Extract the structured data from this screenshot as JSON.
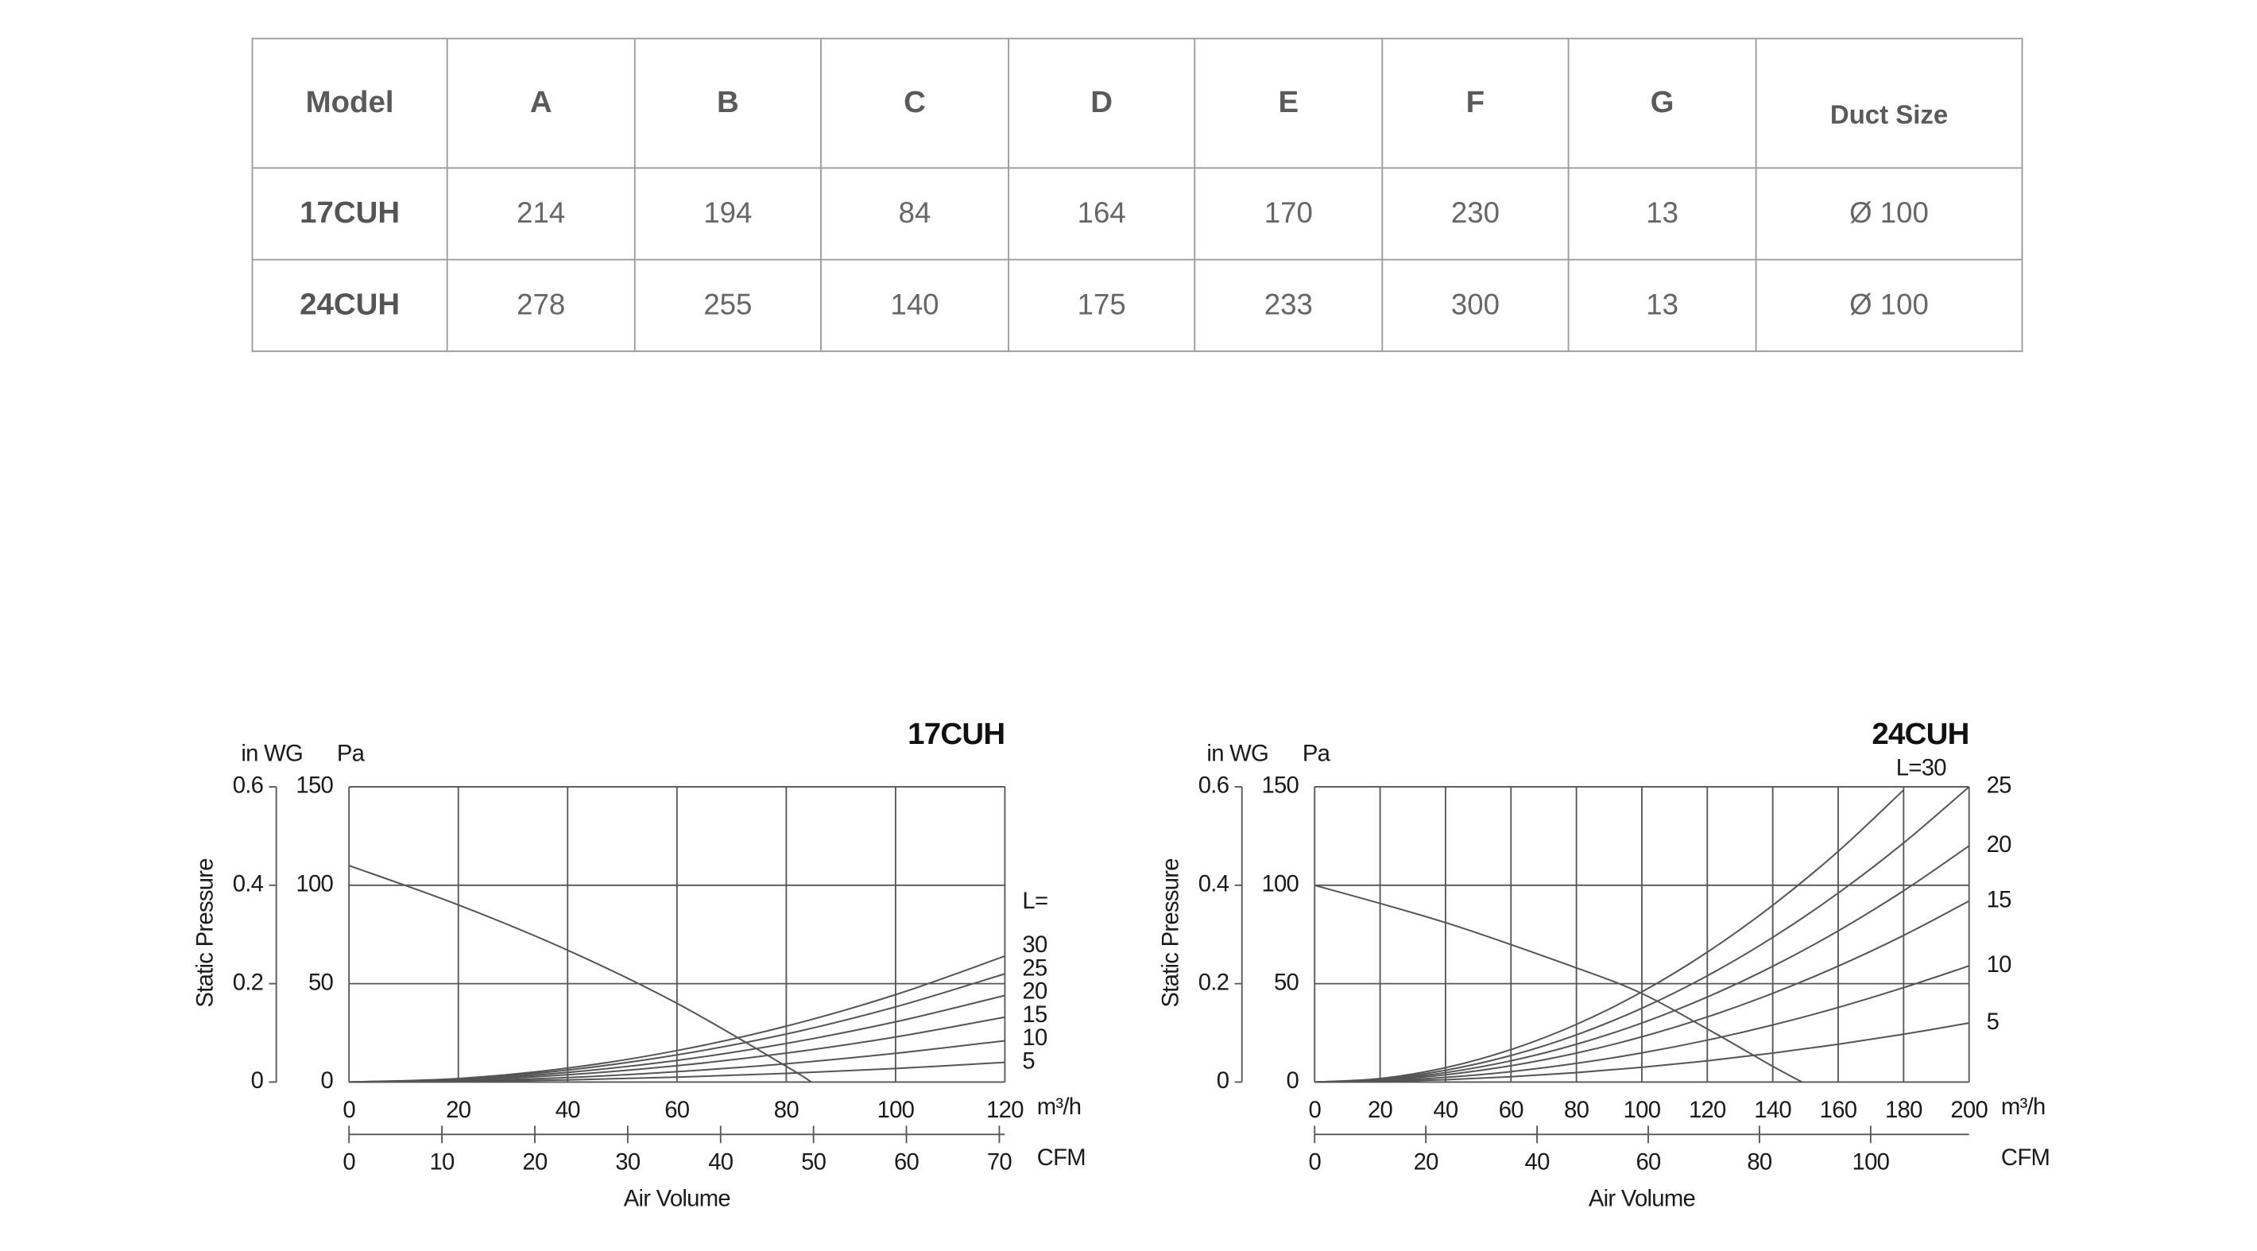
{
  "table": {
    "headers": [
      "Model",
      "A",
      "B",
      "C",
      "D",
      "E",
      "F",
      "G",
      "Duct Size"
    ],
    "rows": [
      [
        "17CUH",
        "214",
        "194",
        "84",
        "164",
        "170",
        "230",
        "13",
        "Ø 100"
      ],
      [
        "24CUH",
        "278",
        "255",
        "140",
        "175",
        "233",
        "300",
        "13",
        "Ø 100"
      ]
    ]
  },
  "chart_data": [
    {
      "type": "line",
      "title": "17CUH",
      "y_label": "Static Pressure",
      "y_unit": "Pa",
      "y2_unit": "in WG",
      "x_label": "Air Volume",
      "x_unit": "m³/h",
      "x2_unit": "CFM",
      "series_label": "L=",
      "color": "#555555",
      "grid": true,
      "xlim": [
        0,
        120
      ],
      "xticks": [
        0,
        20,
        40,
        60,
        80,
        100,
        120
      ],
      "x2lim": [
        0,
        70.6
      ],
      "x2ticks": [
        0,
        10,
        20,
        30,
        40,
        50,
        60,
        70
      ],
      "ylim": [
        0,
        150
      ],
      "yticks": [
        0,
        50,
        100,
        150
      ],
      "y2lim": [
        0,
        0.6
      ],
      "y2ticks": [
        0,
        0.2,
        0.4,
        0.6
      ],
      "series": [
        {
          "x": [
            0,
            20,
            40,
            60,
            80,
            84.6
          ],
          "values": [
            110,
            90,
            67,
            40,
            8,
            0
          ]
        },
        {
          "name": "30",
          "x": [
            0,
            20,
            40,
            60,
            80,
            100,
            120
          ],
          "values": [
            0,
            1.8,
            7.1,
            16,
            28.4,
            44.4,
            64
          ]
        },
        {
          "name": "25",
          "x": [
            0,
            20,
            40,
            60,
            80,
            100,
            120
          ],
          "values": [
            0,
            1.5,
            6.1,
            13.8,
            24.4,
            38.2,
            55
          ]
        },
        {
          "name": "20",
          "x": [
            0,
            20,
            40,
            60,
            80,
            100,
            120
          ],
          "values": [
            0,
            1.2,
            4.9,
            11,
            19.6,
            30.6,
            44
          ]
        },
        {
          "name": "15",
          "x": [
            0,
            20,
            40,
            60,
            80,
            100,
            120
          ],
          "values": [
            0,
            0.9,
            3.7,
            8.3,
            14.7,
            22.9,
            33
          ]
        },
        {
          "name": "10",
          "x": [
            0,
            20,
            40,
            60,
            80,
            100,
            120
          ],
          "values": [
            0,
            0.6,
            2.3,
            5.3,
            9.3,
            14.6,
            21
          ]
        },
        {
          "name": "5",
          "x": [
            0,
            20,
            40,
            60,
            80,
            100,
            120
          ],
          "values": [
            0,
            0.3,
            1.1,
            2.5,
            4.4,
            6.9,
            10
          ]
        }
      ]
    },
    {
      "type": "line",
      "title": "24CUH",
      "y_label": "Static Pressure",
      "y_unit": "Pa",
      "y2_unit": "in WG",
      "x_label": "Air Volume",
      "x_unit": "m³/h",
      "x2_unit": "CFM",
      "color": "#555555",
      "grid": true,
      "xlim": [
        0,
        200
      ],
      "xticks": [
        0,
        20,
        40,
        60,
        80,
        100,
        120,
        140,
        160,
        180,
        200
      ],
      "x2lim": [
        0,
        117.7
      ],
      "x2ticks": [
        0,
        20,
        40,
        60,
        80,
        100
      ],
      "ylim": [
        0,
        150
      ],
      "yticks": [
        0,
        50,
        100,
        150
      ],
      "y2lim": [
        0,
        0.6
      ],
      "y2ticks": [
        0,
        0.2,
        0.4,
        0.6
      ],
      "series": [
        {
          "x": [
            0,
            40,
            80,
            100,
            120,
            140,
            149
          ],
          "values": [
            100,
            81,
            58,
            45,
            27,
            8,
            0
          ]
        },
        {
          "name": "L=30",
          "x": [
            0,
            20,
            40,
            60,
            80,
            100,
            120,
            140,
            160,
            180
          ],
          "values": [
            0,
            1.8,
            7.3,
            16.5,
            29.3,
            45.8,
            66,
            89.8,
            117.2,
            148.4
          ]
        },
        {
          "name": "25",
          "x": [
            0,
            20,
            40,
            60,
            80,
            100,
            120,
            140,
            160,
            180,
            200
          ],
          "values": [
            0,
            1.5,
            6,
            13.5,
            24,
            37.5,
            54,
            73.5,
            96,
            121.5,
            150
          ]
        },
        {
          "name": "20",
          "x": [
            0,
            20,
            40,
            60,
            80,
            100,
            120,
            140,
            160,
            180,
            200
          ],
          "values": [
            0,
            1.2,
            4.8,
            10.8,
            19.2,
            30,
            43.2,
            58.8,
            76.8,
            97.2,
            120
          ]
        },
        {
          "name": "15",
          "x": [
            0,
            20,
            40,
            60,
            80,
            100,
            120,
            140,
            160,
            180,
            200
          ],
          "values": [
            0,
            0.9,
            3.7,
            8.3,
            14.7,
            23,
            33.1,
            45.1,
            58.9,
            74.5,
            92
          ]
        },
        {
          "name": "10",
          "x": [
            0,
            20,
            40,
            60,
            80,
            100,
            120,
            140,
            160,
            180,
            200
          ],
          "values": [
            0,
            0.6,
            2.4,
            5.3,
            9.5,
            14.8,
            21.3,
            29,
            37.9,
            48,
            59
          ]
        },
        {
          "name": "5",
          "x": [
            0,
            20,
            40,
            60,
            80,
            100,
            120,
            140,
            160,
            180,
            200
          ],
          "values": [
            0,
            0.3,
            1.2,
            2.7,
            4.8,
            7.5,
            10.8,
            14.7,
            19.2,
            24.3,
            30
          ]
        }
      ]
    }
  ]
}
